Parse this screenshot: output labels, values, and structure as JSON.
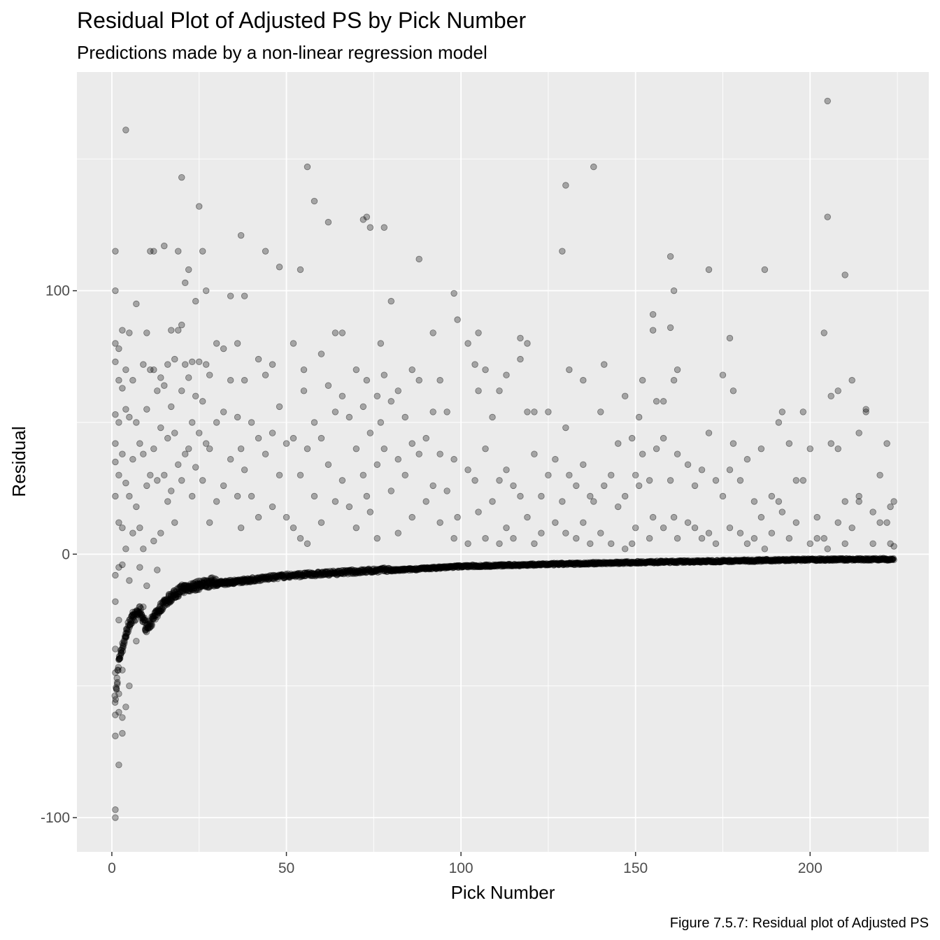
{
  "chart_data": {
    "type": "scatter",
    "title": "Residual Plot of Adjusted PS by Pick Number",
    "subtitle": "Predictions made by a non-linear regression model",
    "xlabel": "Pick Number",
    "ylabel": "Residual",
    "caption": "Figure 7.5.7: Residual plot of Adjusted PS",
    "xlim": [
      -10,
      234
    ],
    "ylim": [
      -113,
      183
    ],
    "x_ticks": [
      0,
      50,
      100,
      150,
      200
    ],
    "x_tick_labels": [
      "0",
      "50",
      "100",
      "150",
      "200"
    ],
    "y_ticks": [
      -100,
      0,
      100
    ],
    "y_tick_labels": [
      "-100",
      "0",
      "100"
    ],
    "grid": true,
    "legend": "none",
    "point_color": "#000000",
    "point_alpha": 0.3,
    "panel_background": "#ebebeb",
    "baseline_curve": {
      "description_of_dense_band": "dense lower band of residuals follows approximately y = -57 / x^0.72",
      "x_range": [
        1,
        224
      ],
      "sample": [
        [
          1,
          -57
        ],
        [
          2,
          -42
        ],
        [
          3,
          -37
        ],
        [
          5,
          -28
        ],
        [
          8,
          -23
        ],
        [
          10,
          -30
        ],
        [
          15,
          -20
        ],
        [
          20,
          -15
        ],
        [
          30,
          -12
        ],
        [
          50,
          -9
        ],
        [
          75,
          -7
        ],
        [
          100,
          -5
        ],
        [
          150,
          -3.5
        ],
        [
          200,
          -2.5
        ],
        [
          224,
          -2.3
        ]
      ]
    },
    "points": [
      [
        1,
        115
      ],
      [
        1,
        100
      ],
      [
        1,
        80
      ],
      [
        1,
        73
      ],
      [
        1,
        53
      ],
      [
        1,
        42
      ],
      [
        1,
        35
      ],
      [
        1,
        22
      ],
      [
        1,
        -8
      ],
      [
        1,
        -18
      ],
      [
        1,
        -36
      ],
      [
        1,
        -45
      ],
      [
        1,
        -61
      ],
      [
        1,
        -69
      ],
      [
        1,
        -97
      ],
      [
        1,
        -100
      ],
      [
        2,
        78
      ],
      [
        2,
        66
      ],
      [
        2,
        50
      ],
      [
        2,
        30
      ],
      [
        2,
        12
      ],
      [
        2,
        -5
      ],
      [
        2,
        -25
      ],
      [
        2,
        -40
      ],
      [
        2,
        -53
      ],
      [
        2,
        -60
      ],
      [
        2,
        -80
      ],
      [
        3,
        85
      ],
      [
        3,
        63
      ],
      [
        3,
        38
      ],
      [
        3,
        10
      ],
      [
        3,
        -4
      ],
      [
        3,
        -44
      ],
      [
        3,
        -62
      ],
      [
        3,
        -68
      ],
      [
        4,
        161
      ],
      [
        4,
        70
      ],
      [
        4,
        55
      ],
      [
        4,
        27
      ],
      [
        4,
        2
      ],
      [
        4,
        -30
      ],
      [
        4,
        -58
      ],
      [
        5,
        84
      ],
      [
        5,
        52
      ],
      [
        5,
        22
      ],
      [
        5,
        -10
      ],
      [
        5,
        -50
      ],
      [
        6,
        66
      ],
      [
        6,
        36
      ],
      [
        6,
        8
      ],
      [
        6,
        -22
      ],
      [
        7,
        95
      ],
      [
        7,
        50
      ],
      [
        7,
        18
      ],
      [
        7,
        -33
      ],
      [
        8,
        42
      ],
      [
        8,
        10
      ],
      [
        8,
        -5
      ],
      [
        9,
        72
      ],
      [
        9,
        38
      ],
      [
        9,
        2
      ],
      [
        9,
        -20
      ],
      [
        10,
        84
      ],
      [
        10,
        55
      ],
      [
        10,
        26
      ],
      [
        10,
        -12
      ],
      [
        11,
        115
      ],
      [
        11,
        70
      ],
      [
        11,
        30
      ],
      [
        12,
        115
      ],
      [
        12,
        70
      ],
      [
        12,
        40
      ],
      [
        12,
        5
      ],
      [
        13,
        62
      ],
      [
        13,
        28
      ],
      [
        13,
        -6
      ],
      [
        14,
        67
      ],
      [
        14,
        48
      ],
      [
        14,
        8
      ],
      [
        15,
        117
      ],
      [
        15,
        64
      ],
      [
        15,
        30
      ],
      [
        16,
        72
      ],
      [
        16,
        44
      ],
      [
        16,
        20
      ],
      [
        17,
        85
      ],
      [
        17,
        56
      ],
      [
        17,
        24
      ],
      [
        18,
        74
      ],
      [
        18,
        46
      ],
      [
        18,
        12
      ],
      [
        19,
        115
      ],
      [
        19,
        85
      ],
      [
        19,
        34
      ],
      [
        20,
        143
      ],
      [
        20,
        87
      ],
      [
        20,
        62
      ],
      [
        20,
        28
      ],
      [
        21,
        103
      ],
      [
        21,
        72
      ],
      [
        21,
        38
      ],
      [
        22,
        108
      ],
      [
        22,
        67
      ],
      [
        22,
        40
      ],
      [
        23,
        73
      ],
      [
        23,
        50
      ],
      [
        23,
        22
      ],
      [
        24,
        96
      ],
      [
        24,
        60
      ],
      [
        24,
        33
      ],
      [
        25,
        132
      ],
      [
        25,
        73
      ],
      [
        25,
        46
      ],
      [
        26,
        115
      ],
      [
        26,
        58
      ],
      [
        26,
        28
      ],
      [
        27,
        100
      ],
      [
        27,
        72
      ],
      [
        27,
        42
      ],
      [
        28,
        68
      ],
      [
        28,
        40
      ],
      [
        28,
        12
      ],
      [
        30,
        80
      ],
      [
        30,
        50
      ],
      [
        30,
        20
      ],
      [
        32,
        78
      ],
      [
        32,
        54
      ],
      [
        32,
        26
      ],
      [
        34,
        98
      ],
      [
        34,
        66
      ],
      [
        34,
        36
      ],
      [
        36,
        80
      ],
      [
        36,
        52
      ],
      [
        36,
        22
      ],
      [
        37,
        121
      ],
      [
        37,
        40
      ],
      [
        37,
        10
      ],
      [
        38,
        98
      ],
      [
        38,
        66
      ],
      [
        38,
        32
      ],
      [
        40,
        50
      ],
      [
        40,
        22
      ],
      [
        42,
        74
      ],
      [
        42,
        44
      ],
      [
        42,
        14
      ],
      [
        44,
        115
      ],
      [
        44,
        68
      ],
      [
        44,
        38
      ],
      [
        46,
        72
      ],
      [
        46,
        46
      ],
      [
        46,
        18
      ],
      [
        48,
        109
      ],
      [
        48,
        56
      ],
      [
        48,
        30
      ],
      [
        50,
        42
      ],
      [
        50,
        14
      ],
      [
        52,
        80
      ],
      [
        52,
        44
      ],
      [
        52,
        10
      ],
      [
        54,
        108
      ],
      [
        54,
        30
      ],
      [
        54,
        6
      ],
      [
        55,
        70
      ],
      [
        55,
        62
      ],
      [
        56,
        147
      ],
      [
        56,
        40
      ],
      [
        56,
        4
      ],
      [
        58,
        134
      ],
      [
        58,
        50
      ],
      [
        58,
        22
      ],
      [
        60,
        76
      ],
      [
        60,
        44
      ],
      [
        60,
        12
      ],
      [
        62,
        126
      ],
      [
        62,
        64
      ],
      [
        62,
        34
      ],
      [
        64,
        84
      ],
      [
        64,
        54
      ],
      [
        64,
        20
      ],
      [
        66,
        84
      ],
      [
        66,
        60
      ],
      [
        66,
        28
      ],
      [
        68,
        52
      ],
      [
        68,
        18
      ],
      [
        70,
        70
      ],
      [
        70,
        40
      ],
      [
        70,
        10
      ],
      [
        72,
        127
      ],
      [
        72,
        56
      ],
      [
        72,
        30
      ],
      [
        73,
        128
      ],
      [
        73,
        66
      ],
      [
        73,
        22
      ],
      [
        74,
        124
      ],
      [
        74,
        46
      ],
      [
        74,
        16
      ],
      [
        76,
        60
      ],
      [
        76,
        34
      ],
      [
        76,
        6
      ],
      [
        77,
        80
      ],
      [
        77,
        50
      ],
      [
        78,
        124
      ],
      [
        78,
        68
      ],
      [
        78,
        40
      ],
      [
        80,
        96
      ],
      [
        80,
        58
      ],
      [
        80,
        24
      ],
      [
        82,
        62
      ],
      [
        82,
        36
      ],
      [
        82,
        8
      ],
      [
        84,
        52
      ],
      [
        84,
        30
      ],
      [
        86,
        70
      ],
      [
        86,
        42
      ],
      [
        86,
        14
      ],
      [
        88,
        112
      ],
      [
        88,
        66
      ],
      [
        88,
        38
      ],
      [
        90,
        44
      ],
      [
        90,
        20
      ],
      [
        92,
        84
      ],
      [
        92,
        54
      ],
      [
        92,
        26
      ],
      [
        94,
        66
      ],
      [
        94,
        38
      ],
      [
        94,
        12
      ],
      [
        96,
        54
      ],
      [
        96,
        24
      ],
      [
        98,
        99
      ],
      [
        98,
        36
      ],
      [
        98,
        6
      ],
      [
        99,
        89
      ],
      [
        99,
        14
      ],
      [
        102,
        80
      ],
      [
        102,
        32
      ],
      [
        102,
        4
      ],
      [
        104,
        72
      ],
      [
        104,
        28
      ],
      [
        105,
        84
      ],
      [
        105,
        62
      ],
      [
        105,
        16
      ],
      [
        107,
        70
      ],
      [
        107,
        40
      ],
      [
        107,
        6
      ],
      [
        109,
        52
      ],
      [
        109,
        20
      ],
      [
        111,
        62
      ],
      [
        111,
        28
      ],
      [
        111,
        4
      ],
      [
        113,
        68
      ],
      [
        113,
        32
      ],
      [
        113,
        10
      ],
      [
        115,
        26
      ],
      [
        115,
        6
      ],
      [
        117,
        82
      ],
      [
        117,
        74
      ],
      [
        117,
        22
      ],
      [
        119,
        80
      ],
      [
        119,
        54
      ],
      [
        119,
        14
      ],
      [
        121,
        54
      ],
      [
        121,
        38
      ],
      [
        121,
        4
      ],
      [
        123,
        22
      ],
      [
        123,
        8
      ],
      [
        125,
        54
      ],
      [
        125,
        30
      ],
      [
        127,
        36
      ],
      [
        127,
        12
      ],
      [
        129,
        115
      ],
      [
        129,
        20
      ],
      [
        130,
        140
      ],
      [
        130,
        48
      ],
      [
        130,
        8
      ],
      [
        131,
        70
      ],
      [
        131,
        30
      ],
      [
        133,
        26
      ],
      [
        133,
        6
      ],
      [
        135,
        66
      ],
      [
        135,
        34
      ],
      [
        135,
        12
      ],
      [
        137,
        22
      ],
      [
        137,
        4
      ],
      [
        138,
        147
      ],
      [
        138,
        20
      ],
      [
        140,
        54
      ],
      [
        140,
        8
      ],
      [
        141,
        72
      ],
      [
        141,
        26
      ],
      [
        143,
        30
      ],
      [
        143,
        4
      ],
      [
        145,
        42
      ],
      [
        145,
        18
      ],
      [
        147,
        60
      ],
      [
        147,
        22
      ],
      [
        147,
        2
      ],
      [
        149,
        44
      ],
      [
        149,
        4
      ],
      [
        150,
        30
      ],
      [
        150,
        10
      ],
      [
        151,
        52
      ],
      [
        151,
        26
      ],
      [
        152,
        66
      ],
      [
        152,
        38
      ],
      [
        154,
        28
      ],
      [
        154,
        6
      ],
      [
        155,
        91
      ],
      [
        155,
        85
      ],
      [
        155,
        14
      ],
      [
        156,
        58
      ],
      [
        156,
        40
      ],
      [
        158,
        58
      ],
      [
        158,
        44
      ],
      [
        158,
        10
      ],
      [
        160,
        113
      ],
      [
        160,
        86
      ],
      [
        160,
        28
      ],
      [
        161,
        100
      ],
      [
        161,
        66
      ],
      [
        161,
        14
      ],
      [
        162,
        70
      ],
      [
        162,
        38
      ],
      [
        162,
        6
      ],
      [
        165,
        34
      ],
      [
        165,
        12
      ],
      [
        167,
        26
      ],
      [
        167,
        10
      ],
      [
        169,
        32
      ],
      [
        169,
        6
      ],
      [
        171,
        108
      ],
      [
        171,
        46
      ],
      [
        171,
        8
      ],
      [
        173,
        28
      ],
      [
        173,
        4
      ],
      [
        175,
        68
      ],
      [
        175,
        22
      ],
      [
        177,
        82
      ],
      [
        177,
        32
      ],
      [
        177,
        10
      ],
      [
        178,
        62
      ],
      [
        178,
        42
      ],
      [
        180,
        28
      ],
      [
        180,
        8
      ],
      [
        182,
        36
      ],
      [
        182,
        4
      ],
      [
        184,
        20
      ],
      [
        184,
        6
      ],
      [
        186,
        40
      ],
      [
        186,
        14
      ],
      [
        187,
        108
      ],
      [
        187,
        2
      ],
      [
        189,
        22
      ],
      [
        189,
        8
      ],
      [
        191,
        50
      ],
      [
        191,
        20
      ],
      [
        192,
        54
      ],
      [
        192,
        16
      ],
      [
        194,
        42
      ],
      [
        194,
        6
      ],
      [
        196,
        28
      ],
      [
        196,
        12
      ],
      [
        198,
        54
      ],
      [
        198,
        28
      ],
      [
        200,
        40
      ],
      [
        200,
        4
      ],
      [
        202,
        14
      ],
      [
        202,
        6
      ],
      [
        204,
        84
      ],
      [
        204,
        6
      ],
      [
        205,
        172
      ],
      [
        205,
        128
      ],
      [
        205,
        2
      ],
      [
        206,
        60
      ],
      [
        206,
        42
      ],
      [
        208,
        62
      ],
      [
        208,
        40
      ],
      [
        208,
        12
      ],
      [
        210,
        106
      ],
      [
        210,
        20
      ],
      [
        210,
        4
      ],
      [
        212,
        66
      ],
      [
        212,
        10
      ],
      [
        214,
        46
      ],
      [
        214,
        20
      ],
      [
        214,
        22
      ],
      [
        216,
        54
      ],
      [
        216,
        55
      ],
      [
        218,
        16
      ],
      [
        218,
        4
      ],
      [
        220,
        30
      ],
      [
        220,
        12
      ],
      [
        222,
        42
      ],
      [
        222,
        12
      ],
      [
        223,
        18
      ],
      [
        223,
        4
      ],
      [
        224,
        20
      ],
      [
        224,
        3
      ]
    ]
  }
}
